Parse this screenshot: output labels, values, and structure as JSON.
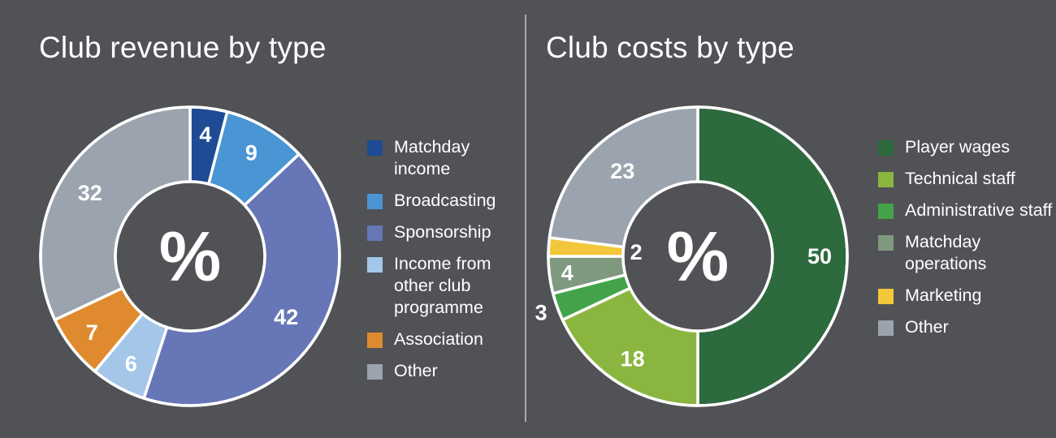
{
  "chart_data": [
    {
      "type": "pie",
      "title": "Club revenue by type",
      "center_label": "%",
      "categories": [
        "Matchday income",
        "Broadcasting",
        "Sponsorship",
        "Income from other club programme",
        "Association",
        "Other"
      ],
      "values": [
        4,
        9,
        42,
        6,
        7,
        32
      ],
      "value_labels": [
        "4",
        "9",
        "42",
        "6",
        "7",
        "32"
      ],
      "colors": [
        "#1e4b94",
        "#4a95d3",
        "#6776b6",
        "#a4c6e8",
        "#e08a2f",
        "#9ba4ae"
      ],
      "legend_position": "right"
    },
    {
      "type": "pie",
      "title": "Club costs by type",
      "center_label": "%",
      "categories": [
        "Player wages",
        "Technical staff",
        "Administrative staff",
        "Matchday operations",
        "Marketing",
        "Other"
      ],
      "values": [
        50,
        18,
        3,
        4,
        2,
        23
      ],
      "value_labels": [
        "50",
        "18",
        "3",
        "4",
        "2",
        "23"
      ],
      "colors": [
        "#2d6a3e",
        "#8ab640",
        "#43a34a",
        "#7f997f",
        "#f3c73b",
        "#9ba4ae"
      ],
      "legend_position": "right"
    }
  ]
}
